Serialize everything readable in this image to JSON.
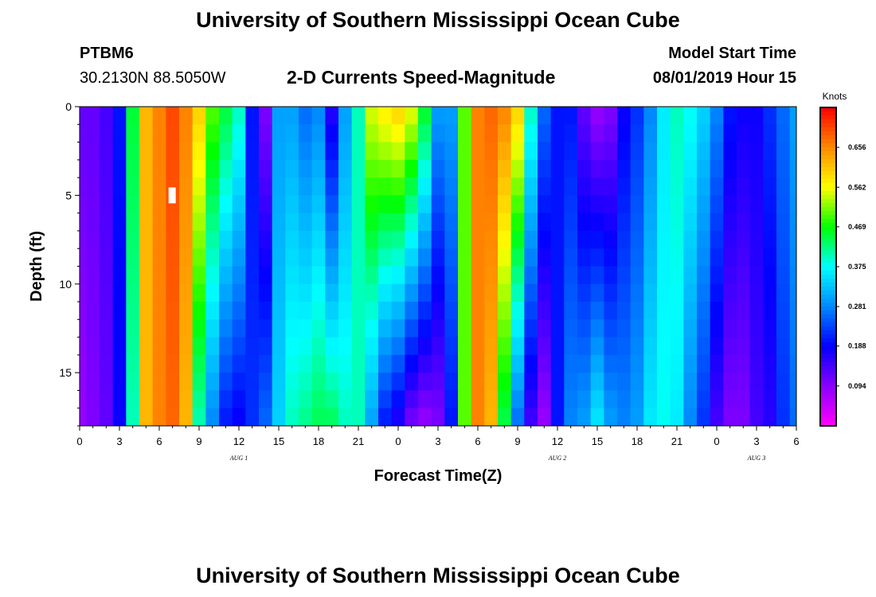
{
  "header": {
    "title": "University of Southern Mississippi Ocean Cube",
    "station_id": "PTBM6",
    "station_coords": "30.2130N 88.5050W",
    "product": "2-D Currents Speed-Magnitude",
    "model_start_label": "Model Start Time",
    "model_start_value": "08/01/2019 Hour 15"
  },
  "footer": {
    "title": "University of Southern Mississippi Ocean Cube"
  },
  "chart_data": {
    "type": "heatmap",
    "title": "2-D Currents Speed-Magnitude",
    "xlabel": "Forecast Time(Z)",
    "ylabel": "Depth (ft)",
    "x_start_hour": 0,
    "x_end_hour": 54,
    "ylim": [
      0,
      18
    ],
    "x_tick_labels": [
      "0",
      "3",
      "6",
      "9",
      "12",
      "15",
      "18",
      "21",
      "0",
      "3",
      "6",
      "9",
      "12",
      "15",
      "18",
      "21",
      "0",
      "3",
      "6"
    ],
    "y_tick_labels": [
      "0",
      "5",
      "10",
      "15"
    ],
    "y_tick_values": [
      0,
      5,
      10,
      15
    ],
    "date_labels": [
      {
        "text": "AUG 1",
        "hour": 12
      },
      {
        "text": "AUG 2",
        "hour": 36
      },
      {
        "text": "AUG 3",
        "hour": 51
      }
    ],
    "colorbar": {
      "label": "Knots",
      "min": 0.0,
      "max": 0.75,
      "tick_labels": [
        "0.656",
        "0.562",
        "0.469",
        "0.375",
        "0.281",
        "0.188",
        "0.094"
      ],
      "tick_values": [
        0.656,
        0.562,
        0.469,
        0.375,
        0.281,
        0.188,
        0.094
      ],
      "colors": [
        "#ff00ff",
        "#8800ff",
        "#0000ff",
        "#0088ff",
        "#00ffff",
        "#00ff00",
        "#ffff00",
        "#ff8800",
        "#ff0000"
      ]
    },
    "marker": {
      "hour": 7,
      "depth": 5
    },
    "depth_levels": [
      0,
      18
    ],
    "speed_profile": [
      {
        "hour": 0,
        "top": 0.12,
        "bottom": 0.08
      },
      {
        "hour": 1,
        "top": 0.12,
        "bottom": 0.1
      },
      {
        "hour": 2,
        "top": 0.14,
        "bottom": 0.12
      },
      {
        "hour": 3,
        "top": 0.2,
        "bottom": 0.18
      },
      {
        "hour": 4,
        "top": 0.45,
        "bottom": 0.4
      },
      {
        "hour": 5,
        "top": 0.62,
        "bottom": 0.62
      },
      {
        "hour": 6,
        "top": 0.66,
        "bottom": 0.66
      },
      {
        "hour": 7,
        "top": 0.7,
        "bottom": 0.68
      },
      {
        "hour": 8,
        "top": 0.66,
        "bottom": 0.62
      },
      {
        "hour": 9,
        "top": 0.6,
        "bottom": 0.4
      },
      {
        "hour": 10,
        "top": 0.5,
        "bottom": 0.28
      },
      {
        "hour": 11,
        "top": 0.45,
        "bottom": 0.2
      },
      {
        "hour": 12,
        "top": 0.4,
        "bottom": 0.18
      },
      {
        "hour": 13,
        "top": 0.2,
        "bottom": 0.22
      },
      {
        "hour": 14,
        "top": 0.1,
        "bottom": 0.26
      },
      {
        "hour": 15,
        "top": 0.3,
        "bottom": 0.34
      },
      {
        "hour": 16,
        "top": 0.3,
        "bottom": 0.4
      },
      {
        "hour": 17,
        "top": 0.26,
        "bottom": 0.42
      },
      {
        "hour": 18,
        "top": 0.28,
        "bottom": 0.44
      },
      {
        "hour": 19,
        "top": 0.16,
        "bottom": 0.44
      },
      {
        "hour": 20,
        "top": 0.3,
        "bottom": 0.4
      },
      {
        "hour": 21,
        "top": 0.4,
        "bottom": 0.4
      },
      {
        "hour": 22,
        "top": 0.55,
        "bottom": 0.3
      },
      {
        "hour": 23,
        "top": 0.58,
        "bottom": 0.2
      },
      {
        "hour": 24,
        "top": 0.6,
        "bottom": 0.16
      },
      {
        "hour": 25,
        "top": 0.56,
        "bottom": 0.1
      },
      {
        "hour": 26,
        "top": 0.46,
        "bottom": 0.08
      },
      {
        "hour": 27,
        "top": 0.3,
        "bottom": 0.1
      },
      {
        "hour": 28,
        "top": 0.3,
        "bottom": 0.2
      },
      {
        "hour": 29,
        "top": 0.5,
        "bottom": 0.5
      },
      {
        "hour": 30,
        "top": 0.66,
        "bottom": 0.66
      },
      {
        "hour": 31,
        "top": 0.68,
        "bottom": 0.62
      },
      {
        "hour": 32,
        "top": 0.66,
        "bottom": 0.44
      },
      {
        "hour": 33,
        "top": 0.6,
        "bottom": 0.26
      },
      {
        "hour": 34,
        "top": 0.4,
        "bottom": 0.14
      },
      {
        "hour": 35,
        "top": 0.26,
        "bottom": 0.08
      },
      {
        "hour": 36,
        "top": 0.2,
        "bottom": 0.2
      },
      {
        "hour": 37,
        "top": 0.2,
        "bottom": 0.28
      },
      {
        "hour": 38,
        "top": 0.12,
        "bottom": 0.3
      },
      {
        "hour": 39,
        "top": 0.08,
        "bottom": 0.36
      },
      {
        "hour": 40,
        "top": 0.1,
        "bottom": 0.3
      },
      {
        "hour": 41,
        "top": 0.18,
        "bottom": 0.28
      },
      {
        "hour": 42,
        "top": 0.22,
        "bottom": 0.3
      },
      {
        "hour": 43,
        "top": 0.28,
        "bottom": 0.36
      },
      {
        "hour": 44,
        "top": 0.36,
        "bottom": 0.38
      },
      {
        "hour": 45,
        "top": 0.4,
        "bottom": 0.36
      },
      {
        "hour": 46,
        "top": 0.38,
        "bottom": 0.28
      },
      {
        "hour": 47,
        "top": 0.34,
        "bottom": 0.22
      },
      {
        "hour": 48,
        "top": 0.28,
        "bottom": 0.14
      },
      {
        "hour": 49,
        "top": 0.2,
        "bottom": 0.1
      },
      {
        "hour": 50,
        "top": 0.18,
        "bottom": 0.1
      },
      {
        "hour": 51,
        "top": 0.18,
        "bottom": 0.14
      },
      {
        "hour": 52,
        "top": 0.22,
        "bottom": 0.16
      },
      {
        "hour": 53,
        "top": 0.26,
        "bottom": 0.22
      },
      {
        "hour": 54,
        "top": 0.3,
        "bottom": 0.26
      }
    ]
  }
}
